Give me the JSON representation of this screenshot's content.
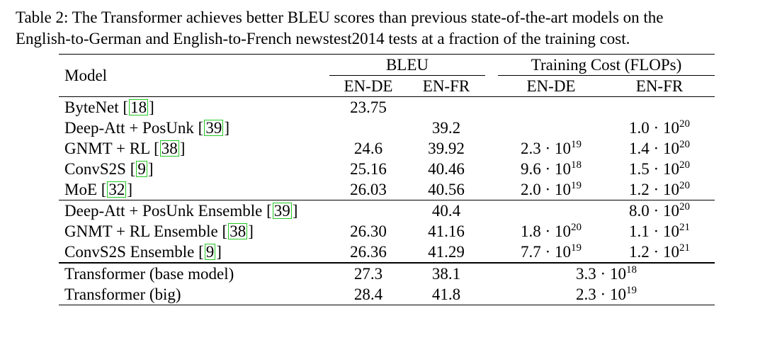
{
  "caption": {
    "line1": "Table 2: The Transformer achieves better BLEU scores than previous state-of-the-art models on the",
    "line2": "English-to-German and English-to-French newstest2014 tests at a fraction of the training cost."
  },
  "header": {
    "model": "Model",
    "bleu": "BLEU",
    "cost": "Training Cost (FLOPs)",
    "en_de": "EN-DE",
    "en_fr": "EN-FR"
  },
  "rows": [
    {
      "name": "ByteNet",
      "cite": "18",
      "bleu_de": "23.75",
      "bleu_fr": "",
      "cost_de": [
        "",
        ""
      ],
      "cost_fr": [
        "",
        ""
      ]
    },
    {
      "name": "Deep-Att + PosUnk",
      "cite": "39",
      "bleu_de": "",
      "bleu_fr": "39.2",
      "cost_de": [
        "",
        ""
      ],
      "cost_fr": [
        "1.0 · 10",
        "20"
      ]
    },
    {
      "name": "GNMT + RL",
      "cite": "38",
      "bleu_de": "24.6",
      "bleu_fr": "39.92",
      "cost_de": [
        "2.3 · 10",
        "19"
      ],
      "cost_fr": [
        "1.4 · 10",
        "20"
      ]
    },
    {
      "name": "ConvS2S",
      "cite": "9",
      "bleu_de": "25.16",
      "bleu_fr": "40.46",
      "cost_de": [
        "9.6 · 10",
        "18"
      ],
      "cost_fr": [
        "1.5 · 10",
        "20"
      ]
    },
    {
      "name": "MoE",
      "cite": "32",
      "bleu_de": "26.03",
      "bleu_fr": "40.56",
      "cost_de": [
        "2.0 · 10",
        "19"
      ],
      "cost_fr": [
        "1.2 · 10",
        "20"
      ]
    },
    {
      "name": "Deep-Att + PosUnk Ensemble",
      "cite": "39",
      "bleu_de": "",
      "bleu_fr": "40.4",
      "cost_de": [
        "",
        ""
      ],
      "cost_fr": [
        "8.0 · 10",
        "20"
      ]
    },
    {
      "name": "GNMT + RL Ensemble",
      "cite": "38",
      "bleu_de": "26.30",
      "bleu_fr": "41.16",
      "cost_de": [
        "1.8 · 10",
        "20"
      ],
      "cost_fr": [
        "1.1 · 10",
        "21"
      ]
    },
    {
      "name": "ConvS2S Ensemble",
      "cite": "9",
      "bleu_de": "26.36",
      "bleu_fr": "41.29",
      "cost_de": [
        "7.7 · 10",
        "19"
      ],
      "cost_fr": [
        "1.2 · 10",
        "21"
      ]
    },
    {
      "name": "Transformer (base model)",
      "cite": "",
      "bleu_de": "27.3",
      "bleu_fr": "38.1",
      "cost_both": [
        "3.3 · 10",
        "18"
      ]
    },
    {
      "name": "Transformer (big)",
      "cite": "",
      "bleu_de": "28.4",
      "bleu_fr": "41.8",
      "cost_both": [
        "2.3 · 10",
        "19"
      ]
    }
  ]
}
